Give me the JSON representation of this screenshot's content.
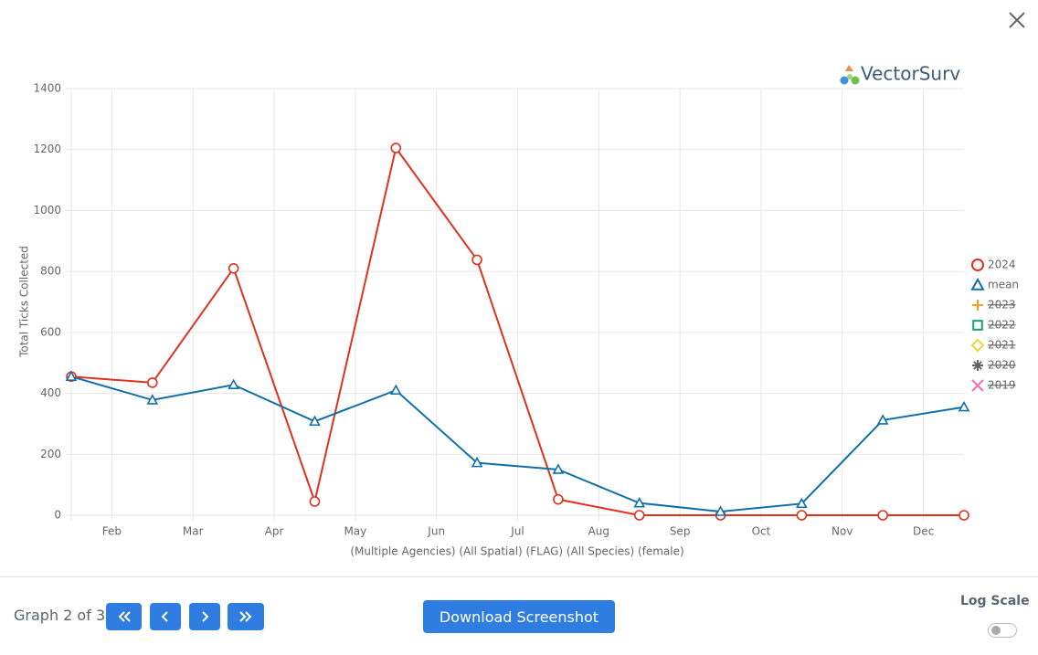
{
  "logo": "VectorSurv",
  "chart_data": {
    "type": "line",
    "y_label": "Total Ticks Collected",
    "x_label": "(Multiple Agencies) (All Spatial) (FLAG) (All Species) (female)",
    "x": [
      0.5,
      1.5,
      2.5,
      3.5,
      4.5,
      5.5,
      6.5,
      7.5,
      8.5,
      9.5,
      10.5,
      11.5
    ],
    "xlim": [
      0.5,
      11.5
    ],
    "xticks": [
      {
        "value": 1,
        "label": "Feb"
      },
      {
        "value": 2,
        "label": "Mar"
      },
      {
        "value": 3,
        "label": "Apr"
      },
      {
        "value": 4,
        "label": "May"
      },
      {
        "value": 5,
        "label": "Jun"
      },
      {
        "value": 6,
        "label": "Jul"
      },
      {
        "value": 7,
        "label": "Aug"
      },
      {
        "value": 8,
        "label": "Sep"
      },
      {
        "value": 9,
        "label": "Oct"
      },
      {
        "value": 10,
        "label": "Nov"
      },
      {
        "value": 11,
        "label": "Dec"
      }
    ],
    "ylim": [
      0,
      1400
    ],
    "yticks": [
      0,
      200,
      400,
      600,
      800,
      1000,
      1200,
      1400
    ],
    "grid": true,
    "legend": "right",
    "series": [
      {
        "name": "2024",
        "color": "#e0301e",
        "marker": "circle",
        "values": [
          455,
          435,
          810,
          45,
          1205,
          838,
          52,
          0,
          0,
          0,
          0,
          0
        ]
      },
      {
        "name": "mean",
        "color": "#0f6fa8",
        "marker": "triangle",
        "values": [
          455,
          378,
          428,
          308,
          410,
          172,
          150,
          40,
          12,
          38,
          312,
          355
        ]
      }
    ],
    "hidden_series": [
      {
        "name": "2023",
        "color": "#f2a41e",
        "marker": "plus"
      },
      {
        "name": "2022",
        "color": "#17a072",
        "marker": "square"
      },
      {
        "name": "2021",
        "color": "#f0d43c",
        "marker": "diamond"
      },
      {
        "name": "2020",
        "color": "#666666",
        "marker": "asterisk"
      },
      {
        "name": "2019",
        "color": "#ef6fb4",
        "marker": "cross"
      }
    ]
  },
  "footer": {
    "graph_label": "Graph 2 of 3",
    "download_button": "Download Screenshot",
    "log_scale_label": "Log Scale",
    "log_scale": false
  }
}
